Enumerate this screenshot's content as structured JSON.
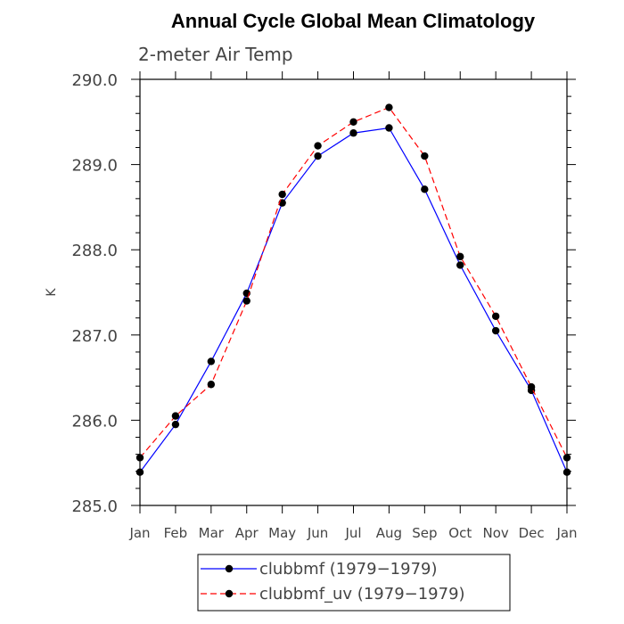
{
  "chart_data": {
    "type": "line",
    "title": "Annual Cycle Global Mean Climatology",
    "subtitle": "2-meter Air Temp",
    "xlabel": "",
    "ylabel": "K",
    "ylim": [
      285.0,
      290.0
    ],
    "y_ticks": [
      "285.0",
      "286.0",
      "287.0",
      "288.0",
      "289.0",
      "290.0"
    ],
    "y_tick_values": [
      285.0,
      286.0,
      287.0,
      288.0,
      289.0,
      290.0
    ],
    "categories": [
      "Jan",
      "Feb",
      "Mar",
      "Apr",
      "May",
      "Jun",
      "Jul",
      "Aug",
      "Sep",
      "Oct",
      "Nov",
      "Dec",
      "Jan"
    ],
    "series": [
      {
        "name": "clubbmf (1979-1979)",
        "label": "clubbmf (1979−1979)",
        "color": "#0000ff",
        "dash": "solid",
        "values": [
          285.39,
          285.95,
          286.69,
          287.49,
          288.55,
          289.1,
          289.37,
          289.43,
          288.71,
          287.82,
          287.05,
          286.35,
          285.39
        ]
      },
      {
        "name": "clubbmf_uv (1979-1979)",
        "label": "clubbmf_uv (1979−1979)",
        "color": "#ff0000",
        "dash": "dashed",
        "values": [
          285.56,
          286.05,
          286.42,
          287.4,
          288.65,
          289.22,
          289.5,
          289.67,
          289.1,
          287.92,
          287.22,
          286.39,
          285.56
        ]
      }
    ],
    "grid": false,
    "legend_position": "bottom-center"
  }
}
